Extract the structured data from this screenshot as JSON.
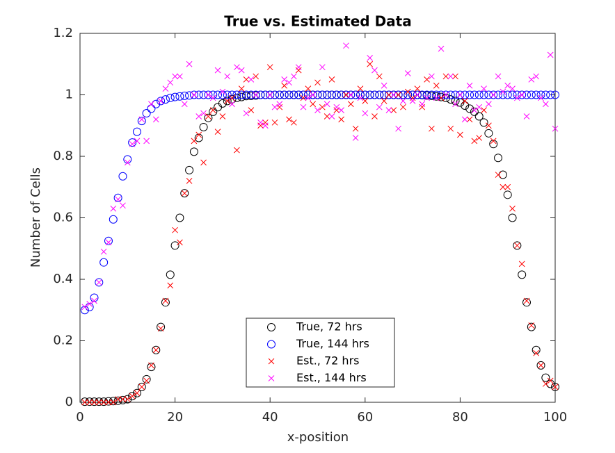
{
  "chart_data": {
    "type": "scatter",
    "title": "True vs. Estimated Data",
    "xlabel": "x-position",
    "ylabel": "Number of Cells",
    "xlim": [
      0,
      100
    ],
    "ylim": [
      0,
      1.2
    ],
    "xticks": [
      0,
      20,
      40,
      60,
      80,
      100
    ],
    "yticks": [
      0,
      0.2,
      0.4,
      0.6,
      0.8,
      1,
      1.2
    ],
    "legend": "south",
    "grid": false,
    "x": [
      1,
      2,
      3,
      4,
      5,
      6,
      7,
      8,
      9,
      10,
      11,
      12,
      13,
      14,
      15,
      16,
      17,
      18,
      19,
      20,
      21,
      22,
      23,
      24,
      25,
      26,
      27,
      28,
      29,
      30,
      31,
      32,
      33,
      34,
      35,
      36,
      37,
      38,
      39,
      40,
      41,
      42,
      43,
      44,
      45,
      46,
      47,
      48,
      49,
      50,
      51,
      52,
      53,
      54,
      55,
      56,
      57,
      58,
      59,
      60,
      61,
      62,
      63,
      64,
      65,
      66,
      67,
      68,
      69,
      70,
      71,
      72,
      73,
      74,
      75,
      76,
      77,
      78,
      79,
      80,
      81,
      82,
      83,
      84,
      85,
      86,
      87,
      88,
      89,
      90,
      91,
      92,
      93,
      94,
      95,
      96,
      97,
      98,
      99,
      100
    ],
    "series": [
      {
        "name": "True, 72 hrs",
        "color": "#000000",
        "marker": "o",
        "values": [
          0.002,
          0.002,
          0.002,
          0.002,
          0.002,
          0.003,
          0.004,
          0.005,
          0.007,
          0.01,
          0.02,
          0.03,
          0.05,
          0.075,
          0.115,
          0.17,
          0.245,
          0.325,
          0.415,
          0.51,
          0.6,
          0.68,
          0.755,
          0.815,
          0.86,
          0.895,
          0.925,
          0.945,
          0.96,
          0.972,
          0.98,
          0.986,
          0.99,
          0.993,
          0.996,
          0.997,
          0.998,
          1,
          1,
          1,
          1,
          1,
          1,
          1,
          1,
          1,
          1,
          1,
          1,
          1,
          1,
          1,
          1,
          1,
          1,
          1,
          1,
          1,
          1,
          1,
          1,
          1,
          1,
          1,
          1,
          1,
          1,
          1,
          1,
          1,
          1,
          0.999,
          0.998,
          0.997,
          0.995,
          0.993,
          0.99,
          0.985,
          0.98,
          0.975,
          0.965,
          0.955,
          0.945,
          0.93,
          0.91,
          0.875,
          0.84,
          0.795,
          0.74,
          0.675,
          0.6,
          0.51,
          0.415,
          0.325,
          0.245,
          0.17,
          0.12,
          0.08,
          0.06,
          0.05
        ]
      },
      {
        "name": "True, 144 hrs",
        "color": "#0000ff",
        "marker": "o",
        "values": [
          0.3,
          0.31,
          0.34,
          0.39,
          0.455,
          0.525,
          0.595,
          0.665,
          0.735,
          0.79,
          0.845,
          0.88,
          0.915,
          0.94,
          0.955,
          0.97,
          0.98,
          0.985,
          0.99,
          0.993,
          0.995,
          0.997,
          0.998,
          1,
          1,
          1,
          1,
          1,
          1,
          1,
          1,
          1,
          1,
          1,
          1,
          1,
          1,
          1,
          1,
          1,
          1,
          1,
          1,
          1,
          1,
          1,
          1,
          1,
          1,
          1,
          1,
          1,
          1,
          1,
          1,
          1,
          1,
          1,
          1,
          1,
          1,
          1,
          1,
          1,
          1,
          1,
          1,
          1,
          1,
          1,
          1,
          1,
          1,
          1,
          1,
          1,
          1,
          1,
          1,
          1,
          1,
          1,
          1,
          1,
          1,
          1,
          1,
          1,
          1,
          1,
          1,
          1,
          1,
          1,
          1,
          1,
          1,
          1,
          1,
          1
        ]
      },
      {
        "name": "Est., 72 hrs",
        "color": "#ff0000",
        "marker": "x",
        "values": [
          0,
          0,
          0,
          0,
          0,
          0,
          0,
          0.01,
          0.01,
          0.01,
          0.02,
          0.03,
          0.05,
          0.07,
          0.12,
          0.17,
          0.24,
          0.33,
          0.38,
          0.56,
          0.52,
          0.68,
          0.72,
          0.85,
          0.87,
          0.78,
          0.93,
          0.95,
          0.88,
          0.93,
          0.98,
          0.99,
          0.82,
          1.02,
          1.05,
          0.95,
          1.06,
          0.9,
          0.91,
          1.09,
          0.91,
          0.96,
          1.03,
          0.92,
          0.91,
          1.08,
          0.99,
          1.02,
          0.97,
          1.04,
          0.96,
          0.93,
          1.05,
          0.95,
          0.92,
          1,
          0.97,
          0.89,
          1.02,
          0.98,
          1.1,
          0.93,
          1.06,
          0.98,
          1,
          0.95,
          1,
          0.96,
          1.01,
          0.99,
          1.02,
          0.96,
          1.05,
          0.89,
          1.03,
          0.99,
          1.06,
          0.89,
          1.06,
          0.87,
          0.98,
          0.92,
          0.85,
          0.86,
          0.95,
          0.9,
          0.85,
          0.74,
          0.7,
          0.7,
          0.63,
          0.51,
          0.45,
          0.33,
          0.25,
          0.16,
          0.12,
          0.06,
          0.07,
          0.05
        ]
      },
      {
        "name": "Est., 144 hrs",
        "color": "#ff00ff",
        "marker": "x",
        "values": [
          0.31,
          0.32,
          0.33,
          0.39,
          0.49,
          0.52,
          0.63,
          0.66,
          0.64,
          0.78,
          0.84,
          0.85,
          0.92,
          0.85,
          0.97,
          0.92,
          0.98,
          1.02,
          1.04,
          1.06,
          1.06,
          0.97,
          1.1,
          1,
          0.93,
          0.94,
          1,
          0.99,
          1.08,
          1.01,
          1.06,
          0.97,
          1.09,
          1.08,
          0.94,
          1.05,
          1,
          0.91,
          0.9,
          1,
          0.96,
          0.97,
          1.05,
          1.04,
          1.06,
          1.09,
          0.96,
          0.99,
          1,
          0.95,
          1.09,
          0.97,
          0.93,
          0.96,
          0.95,
          1.16,
          1,
          0.86,
          0.99,
          0.94,
          1.12,
          1.08,
          0.96,
          1.03,
          0.95,
          1,
          0.89,
          0.98,
          1.07,
          0.98,
          1,
          0.97,
          0.99,
          1.06,
          0.99,
          1.15,
          1,
          1.06,
          0.97,
          1,
          0.92,
          1.03,
          0.95,
          0.96,
          1.02,
          0.97,
          1,
          1.06,
          1.01,
          1.03,
          1.02,
          0.99,
          1,
          0.93,
          1.05,
          1.06,
          0.99,
          0.97,
          1.13,
          0.89
        ]
      }
    ]
  }
}
